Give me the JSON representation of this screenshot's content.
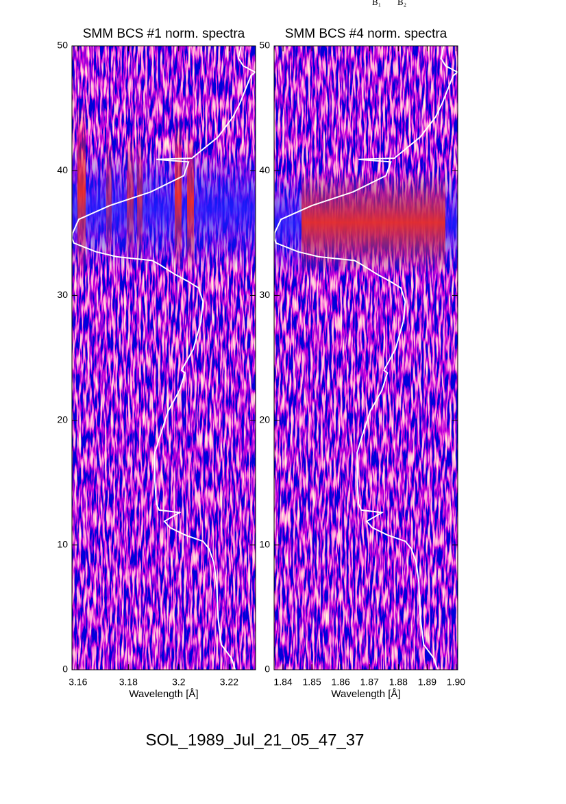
{
  "chart_data": [
    {
      "type": "line",
      "title": "SMM BCS #1 norm. spectra",
      "xlabel": "Wavelength [Å]",
      "color": "#ffffff",
      "xlim": [
        3.1576,
        3.2305
      ],
      "xticks": [
        3.16,
        3.18,
        3.2,
        3.22
      ],
      "ylim": [
        0,
        50
      ],
      "yticks": [
        0,
        10,
        20,
        30,
        40,
        50
      ],
      "x": [
        3.2224,
        3.221,
        3.2177,
        3.2169,
        3.2156,
        3.215,
        3.2139,
        3.212,
        3.2096,
        3.2025,
        3.1965,
        3.1943,
        3.2003,
        3.1922,
        3.1911,
        3.1905,
        3.1905,
        3.1922,
        3.1957,
        3.2003,
        3.2025,
        3.2011,
        3.2058,
        3.2088,
        3.2096,
        3.2079,
        3.2039,
        3.1984,
        3.1922,
        3.1894,
        3.1753,
        3.1671,
        3.1584,
        3.1576,
        3.1579,
        3.1603,
        3.1726,
        3.1889,
        3.202,
        3.2039,
        3.1911,
        3.2052,
        3.2156,
        3.2215,
        3.2243,
        3.2286,
        3.2303,
        3.2256,
        3.2237,
        3.2248
      ],
      "values": [
        0,
        0.9,
        1.8,
        2.0,
        4.2,
        7.0,
        8.6,
        9.7,
        10.3,
        10.8,
        11.4,
        11.9,
        12.6,
        12.8,
        13.3,
        15.2,
        17.4,
        18.5,
        20.7,
        22.4,
        23.8,
        24.0,
        25.7,
        27.9,
        29.5,
        30.6,
        31.1,
        31.7,
        32.5,
        32.8,
        33.1,
        33.5,
        34.2,
        34.6,
        35.0,
        36.1,
        37.2,
        38.3,
        39.6,
        40.7,
        40.9,
        41.0,
        42.7,
        44.3,
        45.4,
        47.6,
        47.9,
        48.4,
        49.0,
        50
      ]
    },
    {
      "type": "line",
      "title": "SMM BCS #4 norm. spectra",
      "xlabel": "Wavelength [Å]",
      "color": "#ffffff",
      "xlim": [
        1.8369,
        1.9006
      ],
      "xticks": [
        1.84,
        1.85,
        1.86,
        1.87,
        1.88,
        1.89,
        {
          "value": 1.9,
          "label": "1.90"
        }
      ],
      "ylim": [
        0,
        50
      ],
      "yticks": [
        0,
        10,
        20,
        30,
        40,
        50
      ],
      "x": [
        1.8936,
        1.8924,
        1.8895,
        1.8888,
        1.8876,
        1.8871,
        1.8862,
        1.8845,
        1.8824,
        1.8762,
        1.8709,
        1.869,
        1.8743,
        1.8671,
        1.8662,
        1.8657,
        1.8657,
        1.8671,
        1.8702,
        1.8743,
        1.8762,
        1.875,
        1.879,
        1.8817,
        1.8824,
        1.8809,
        1.8774,
        1.8726,
        1.8671,
        1.8648,
        1.8524,
        1.8452,
        1.8376,
        1.8369,
        1.8371,
        1.8393,
        1.85,
        1.8643,
        1.8757,
        1.8774,
        1.8662,
        1.8786,
        1.8876,
        1.8929,
        1.8952,
        1.899,
        1.9005,
        1.8964,
        1.8948,
        1.8957
      ],
      "values": [
        0,
        0.9,
        1.8,
        2.0,
        4.2,
        7.0,
        8.6,
        9.7,
        10.3,
        10.8,
        11.4,
        11.9,
        12.6,
        12.8,
        13.3,
        15.2,
        17.4,
        18.5,
        20.7,
        22.4,
        23.8,
        24.0,
        25.7,
        27.9,
        29.5,
        30.6,
        31.1,
        31.7,
        32.5,
        32.8,
        33.1,
        33.5,
        34.2,
        34.6,
        35.0,
        36.1,
        37.2,
        38.3,
        39.6,
        40.7,
        40.9,
        41.0,
        42.7,
        44.3,
        45.4,
        47.6,
        47.9,
        48.4,
        49.0,
        50
      ]
    }
  ],
  "top_labels": [
    "B₁",
    "B₂"
  ],
  "caption": "SOL_1989_Jul_21_05_47_37"
}
